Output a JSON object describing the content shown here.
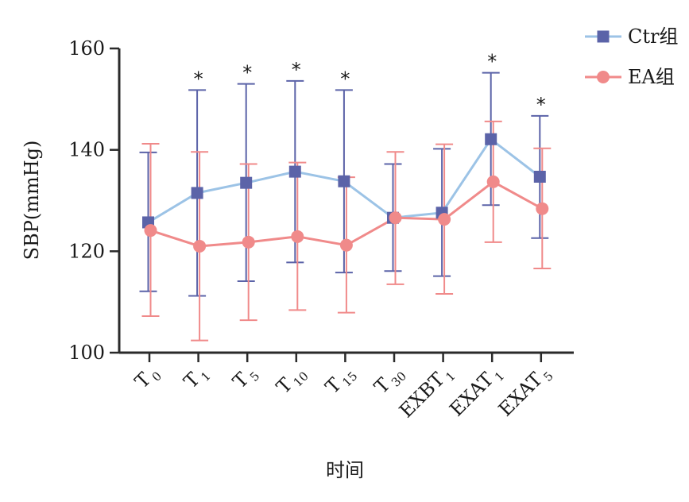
{
  "chart_data": {
    "type": "line",
    "xlabel": "时间",
    "ylabel": "SBP(mmHg)",
    "ylim": [
      100,
      160
    ],
    "yticks": [
      "100",
      "120",
      "140",
      "160"
    ],
    "categories": [
      {
        "main": "T",
        "sub": "0"
      },
      {
        "main": "T",
        "sub": "1"
      },
      {
        "main": "T",
        "sub": "5"
      },
      {
        "main": "T",
        "sub": "10"
      },
      {
        "main": "T",
        "sub": "15"
      },
      {
        "main": "T",
        "sub": "30"
      },
      {
        "main": "EXBT",
        "sub": "1"
      },
      {
        "main": "EXAT",
        "sub": "1"
      },
      {
        "main": "EXAT",
        "sub": "5"
      }
    ],
    "series": [
      {
        "name": "Ctr组",
        "color": "#9cc3e6",
        "marker_color": "#5b63a8",
        "marker": "square",
        "values": [
          125.7,
          131.5,
          133.5,
          135.7,
          133.8,
          126.6,
          127.6,
          142.1,
          134.7
        ],
        "error_high": [
          139.5,
          151.8,
          153.0,
          153.6,
          151.8,
          137.2,
          140.2,
          155.2,
          146.7
        ],
        "error_low": [
          112.1,
          111.2,
          114.1,
          117.8,
          115.8,
          116.1,
          115.1,
          129.1,
          122.6
        ]
      },
      {
        "name": "EA组",
        "color": "#f08a8a",
        "marker_color": "#f08a8a",
        "marker": "circle",
        "values": [
          124.1,
          121.0,
          121.8,
          122.9,
          121.2,
          126.6,
          126.3,
          133.7,
          128.4
        ],
        "error_high": [
          141.2,
          139.6,
          137.2,
          137.5,
          134.6,
          139.6,
          141.1,
          145.6,
          140.3
        ],
        "error_low": [
          107.2,
          102.4,
          106.4,
          108.4,
          107.9,
          113.5,
          111.6,
          121.8,
          116.6
        ]
      }
    ],
    "significance": [
      "",
      "*",
      "*",
      "*",
      "*",
      "",
      "",
      "*",
      "*"
    ],
    "legend_position": "top-right",
    "grid": false
  }
}
